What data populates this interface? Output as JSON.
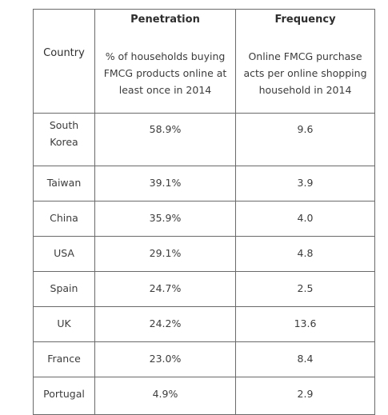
{
  "table": {
    "headers": {
      "country": "Country",
      "penetration_title": "Penetration",
      "penetration_desc": "% of households buying FMCG products online at least once in 2014",
      "frequency_title": "Frequency",
      "frequency_desc": "Online FMCG purchase acts per online shopping household in 2014"
    },
    "rows": [
      {
        "country": "South Korea",
        "penetration": "58.9%",
        "frequency": "9.6"
      },
      {
        "country": "Taiwan",
        "penetration": "39.1%",
        "frequency": "3.9"
      },
      {
        "country": "China",
        "penetration": "35.9%",
        "frequency": "4.0"
      },
      {
        "country": "USA",
        "penetration": "29.1%",
        "frequency": "4.8"
      },
      {
        "country": "Spain",
        "penetration": "24.7%",
        "frequency": "2.5"
      },
      {
        "country": "UK",
        "penetration": "24.2%",
        "frequency": "13.6"
      },
      {
        "country": "France",
        "penetration": "23.0%",
        "frequency": "8.4"
      },
      {
        "country": "Portugal",
        "penetration": "4.9%",
        "frequency": "2.9"
      }
    ]
  }
}
